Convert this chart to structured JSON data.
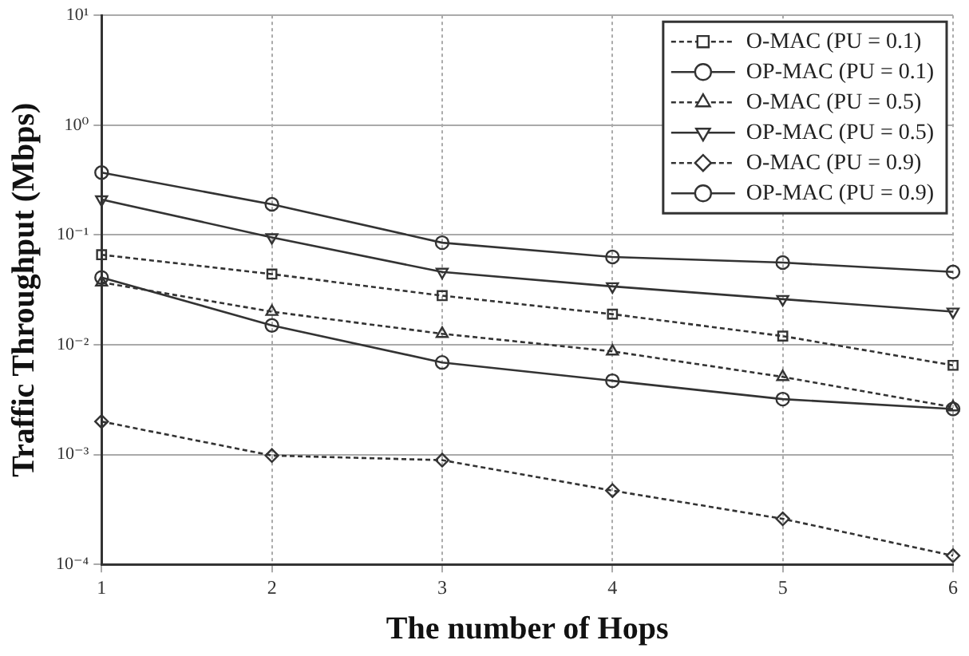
{
  "chart_data": {
    "type": "line",
    "xlabel": "The number of Hops",
    "ylabel": "Traffic Throughput (Mbps)",
    "x": [
      1,
      2,
      3,
      4,
      5,
      6
    ],
    "xlim": [
      1,
      6
    ],
    "xticks": [
      1,
      2,
      3,
      4,
      5,
      6
    ],
    "log": "y",
    "ylim": [
      0.0001,
      10
    ],
    "yticks": [
      {
        "value": 0.0001,
        "label": "10⁻⁴"
      },
      {
        "value": 0.001,
        "label": "10⁻³"
      },
      {
        "value": 0.01,
        "label": "10⁻²"
      },
      {
        "value": 0.1,
        "label": "10⁻¹"
      },
      {
        "value": 1,
        "label": "10⁰"
      },
      {
        "value": 10,
        "label": "10¹"
      }
    ],
    "grid": true,
    "legend": "top right",
    "series": [
      {
        "name": "O-MAC (PU = 0.1)",
        "color": "#333333",
        "marker": "square",
        "line_style": "dashed",
        "values": [
          0.066,
          0.044,
          0.028,
          0.019,
          0.012,
          0.0065
        ]
      },
      {
        "name": "OP-MAC (PU = 0.1)",
        "color": "#333333",
        "marker": "circle",
        "line_style": "solid",
        "values": [
          0.37,
          0.19,
          0.085,
          0.063,
          0.056,
          0.046
        ]
      },
      {
        "name": "O-MAC (PU = 0.5)",
        "color": "#333333",
        "marker": "triangle",
        "line_style": "dashed",
        "values": [
          0.037,
          0.02,
          0.0126,
          0.0087,
          0.0051,
          0.0027
        ]
      },
      {
        "name": "OP-MAC (PU = 0.5)",
        "color": "#333333",
        "marker": "triangle-down",
        "line_style": "solid",
        "values": [
          0.21,
          0.095,
          0.046,
          0.034,
          0.026,
          0.02
        ]
      },
      {
        "name": "O-MAC (PU = 0.9)",
        "color": "#333333",
        "marker": "diamond",
        "line_style": "dashed",
        "values": [
          0.002,
          0.00098,
          0.00089,
          0.00047,
          0.00026,
          0.00012
        ]
      },
      {
        "name": "OP-MAC (PU = 0.9)",
        "color": "#333333",
        "marker": "circle",
        "line_style": "solid",
        "values": [
          0.041,
          0.015,
          0.0069,
          0.0047,
          0.0032,
          0.0026
        ]
      }
    ]
  }
}
